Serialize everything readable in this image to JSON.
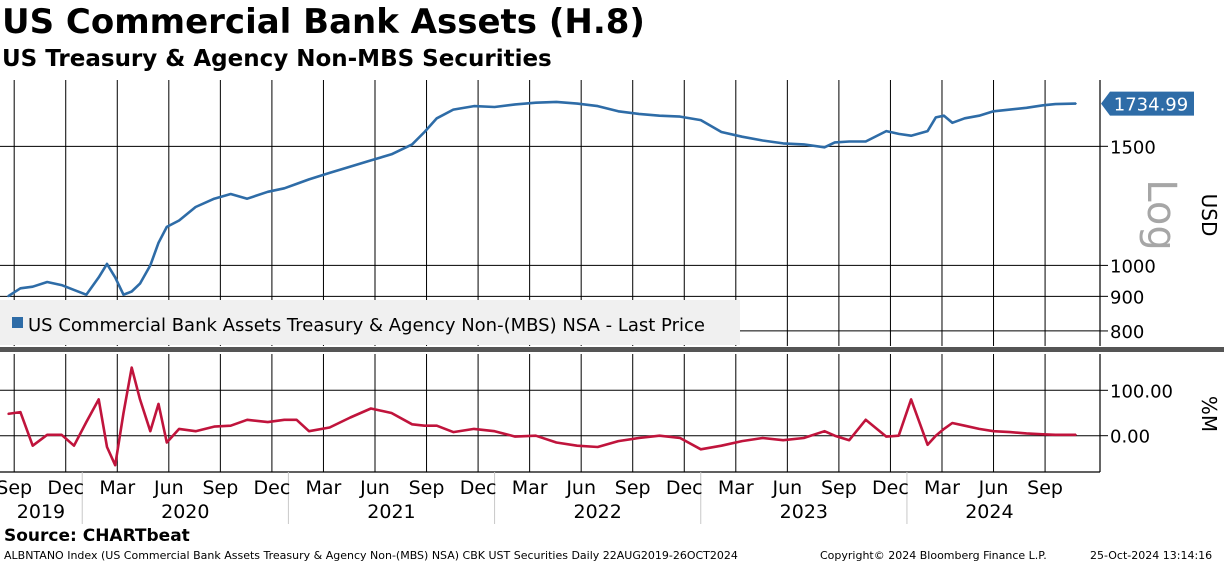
{
  "title": "US Commercial Bank Assets (H.8)",
  "subtitle": "US Treasury & Agency Non-MBS Securities",
  "source": "Source: CHARTbeat",
  "footer": {
    "index_info": "ALBNTANO Index (US Commercial Bank Assets Treasury & Agency Non-(MBS) NSA) CBK UST Securities  Daily 22AUG2019-26OCT2024",
    "copyright": "Copyright© 2024 Bloomberg Finance L.P.",
    "timestamp": "25-Oct-2024 13:14:16"
  },
  "colors": {
    "main_line": "#2e6ca7",
    "sub_line": "#c0143c",
    "grid": "#000000",
    "last_badge_bg": "#2e6ca7",
    "last_badge_text": "#ffffff",
    "log_label": "#a6a6a6",
    "legend_bg": "#f0f0f0"
  },
  "chart_data": [
    {
      "type": "line",
      "name": "main",
      "scale": "log",
      "title": "US Commercial Bank Assets (H.8)",
      "subtitle": "US Treasury & Agency Non-MBS Securities",
      "ylabel": "USD",
      "scale_label": "Log",
      "ylim": [
        760,
        1880
      ],
      "yticks": [
        800,
        900,
        1000,
        1500
      ],
      "ytick_labels": [
        "800",
        "900",
        "1000",
        "1500"
      ],
      "legend": "US Commercial Bank Assets Treasury & Agency Non-(MBS) NSA - Last Price",
      "legend_position": "bottom-left",
      "last_value": 1734.99,
      "last_value_label": "1734.99",
      "series": [
        {
          "name": "US Commercial Bank Assets Treasury & Agency Non-(MBS) NSA - Last Price",
          "x": [
            2019.64,
            2019.7,
            2019.76,
            2019.83,
            2019.9,
            2019.96,
            2020.02,
            2020.08,
            2020.12,
            2020.16,
            2020.2,
            2020.24,
            2020.28,
            2020.33,
            2020.37,
            2020.41,
            2020.47,
            2020.55,
            2020.64,
            2020.72,
            2020.8,
            2020.9,
            2020.98,
            2021.04,
            2021.1,
            2021.2,
            2021.3,
            2021.4,
            2021.5,
            2021.6,
            2021.66,
            2021.72,
            2021.8,
            2021.9,
            2022.0,
            2022.1,
            2022.2,
            2022.3,
            2022.4,
            2022.5,
            2022.6,
            2022.7,
            2022.8,
            2022.9,
            2023.0,
            2023.1,
            2023.2,
            2023.3,
            2023.4,
            2023.5,
            2023.6,
            2023.65,
            2023.72,
            2023.8,
            2023.9,
            2023.96,
            2024.02,
            2024.1,
            2024.14,
            2024.18,
            2024.22,
            2024.28,
            2024.35,
            2024.42,
            2024.5,
            2024.58,
            2024.66,
            2024.72,
            2024.82
          ],
          "values": [
            900,
            925,
            930,
            945,
            935,
            920,
            905,
            960,
            1005,
            960,
            905,
            915,
            940,
            1000,
            1080,
            1140,
            1165,
            1220,
            1255,
            1275,
            1255,
            1285,
            1300,
            1320,
            1340,
            1370,
            1400,
            1430,
            1460,
            1510,
            1575,
            1650,
            1700,
            1720,
            1715,
            1730,
            1740,
            1745,
            1735,
            1720,
            1690,
            1675,
            1665,
            1660,
            1640,
            1575,
            1550,
            1530,
            1515,
            1510,
            1495,
            1520,
            1525,
            1525,
            1580,
            1565,
            1555,
            1580,
            1655,
            1665,
            1625,
            1650,
            1665,
            1690,
            1700,
            1710,
            1725,
            1732,
            1735
          ]
        }
      ]
    },
    {
      "type": "line",
      "name": "sub",
      "ylabel": "%M",
      "ylim": [
        -80,
        180
      ],
      "yticks": [
        0,
        100
      ],
      "ytick_labels": [
        "0.00",
        "100.00"
      ],
      "series": [
        {
          "name": "%M",
          "x": [
            2019.64,
            2019.7,
            2019.76,
            2019.83,
            2019.9,
            2019.96,
            2020.02,
            2020.08,
            2020.12,
            2020.16,
            2020.2,
            2020.24,
            2020.28,
            2020.33,
            2020.37,
            2020.41,
            2020.47,
            2020.55,
            2020.64,
            2020.72,
            2020.8,
            2020.9,
            2020.98,
            2021.04,
            2021.1,
            2021.2,
            2021.3,
            2021.4,
            2021.5,
            2021.6,
            2021.66,
            2021.72,
            2021.8,
            2021.9,
            2022.0,
            2022.1,
            2022.2,
            2022.3,
            2022.4,
            2022.5,
            2022.6,
            2022.7,
            2022.8,
            2022.9,
            2023.0,
            2023.1,
            2023.2,
            2023.3,
            2023.4,
            2023.5,
            2023.6,
            2023.65,
            2023.72,
            2023.8,
            2023.9,
            2023.96,
            2024.02,
            2024.1,
            2024.14,
            2024.18,
            2024.22,
            2024.28,
            2024.35,
            2024.42,
            2024.5,
            2024.58,
            2024.66,
            2024.72,
            2024.82
          ],
          "values": [
            48,
            52,
            -22,
            2,
            2,
            -22,
            30,
            80,
            -25,
            -65,
            50,
            150,
            80,
            10,
            70,
            -15,
            15,
            10,
            20,
            22,
            35,
            30,
            35,
            35,
            10,
            18,
            40,
            60,
            50,
            25,
            22,
            22,
            8,
            15,
            10,
            -2,
            0,
            -15,
            -22,
            -25,
            -12,
            -5,
            0,
            -5,
            -30,
            -22,
            -12,
            -5,
            -10,
            -5,
            10,
            0,
            -10,
            35,
            -2,
            0,
            80,
            -20,
            0,
            15,
            28,
            22,
            15,
            10,
            8,
            5,
            3,
            2,
            2
          ]
        }
      ]
    }
  ],
  "x_axis": {
    "month_ticks": [
      {
        "label": "Sep",
        "x": 2019.67
      },
      {
        "label": "Dec",
        "x": 2019.92
      },
      {
        "label": "Mar",
        "x": 2020.17
      },
      {
        "label": "Jun",
        "x": 2020.42
      },
      {
        "label": "Sep",
        "x": 2020.67
      },
      {
        "label": "Dec",
        "x": 2020.92
      },
      {
        "label": "Mar",
        "x": 2021.17
      },
      {
        "label": "Jun",
        "x": 2021.42
      },
      {
        "label": "Sep",
        "x": 2021.67
      },
      {
        "label": "Dec",
        "x": 2021.92
      },
      {
        "label": "Mar",
        "x": 2022.17
      },
      {
        "label": "Jun",
        "x": 2022.42
      },
      {
        "label": "Sep",
        "x": 2022.67
      },
      {
        "label": "Dec",
        "x": 2022.92
      },
      {
        "label": "Mar",
        "x": 2023.17
      },
      {
        "label": "Jun",
        "x": 2023.42
      },
      {
        "label": "Sep",
        "x": 2023.67
      },
      {
        "label": "Dec",
        "x": 2023.92
      },
      {
        "label": "Mar",
        "x": 2024.17
      },
      {
        "label": "Jun",
        "x": 2024.42
      },
      {
        "label": "Sep",
        "x": 2024.67
      }
    ],
    "years": [
      {
        "label": "2019",
        "x": 2019.8
      },
      {
        "label": "2020",
        "x": 2020.5
      },
      {
        "label": "2021",
        "x": 2021.5
      },
      {
        "label": "2022",
        "x": 2022.5
      },
      {
        "label": "2023",
        "x": 2023.5
      },
      {
        "label": "2024",
        "x": 2024.4
      }
    ],
    "year_boundaries": [
      2020.0,
      2021.0,
      2022.0,
      2023.0,
      2024.0
    ],
    "range": [
      2019.64,
      2024.82
    ]
  }
}
